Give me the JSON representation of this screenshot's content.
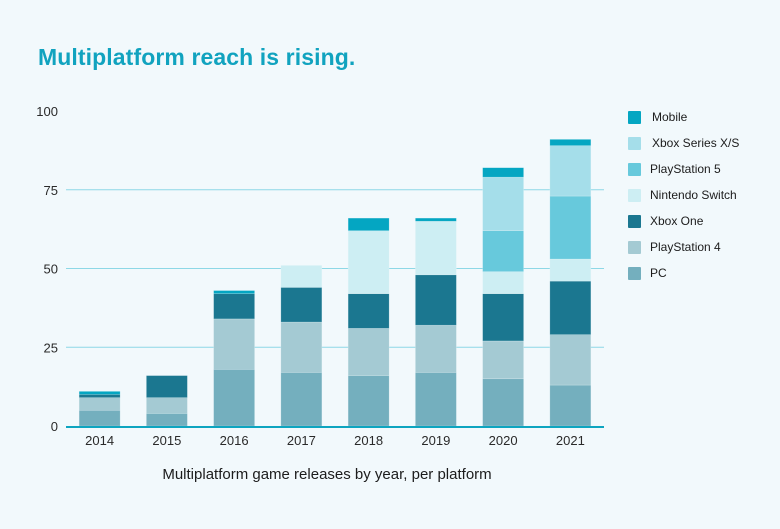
{
  "title": "Multiplatform reach is rising.",
  "chart_data": {
    "type": "bar",
    "stacked": true,
    "title": "Multiplatform reach is rising.",
    "xlabel": "Multiplatform game releases by year, per platform",
    "ylabel": "",
    "ylim": [
      0,
      100
    ],
    "yticks": [
      0,
      25,
      50,
      75,
      100
    ],
    "grid": true,
    "legend_position": "right",
    "categories": [
      "2014",
      "2015",
      "2016",
      "2017",
      "2018",
      "2019",
      "2020",
      "2021"
    ],
    "series": [
      {
        "name": "PC",
        "color": "#74AFBE",
        "values": [
          5,
          4,
          18,
          17,
          16,
          17,
          15,
          13
        ]
      },
      {
        "name": "PlayStation 4",
        "color": "#A4CAD3",
        "values": [
          4,
          5,
          16,
          16,
          15,
          15,
          12,
          16
        ]
      },
      {
        "name": "Xbox One",
        "color": "#1B7790",
        "values": [
          1,
          7,
          8,
          11,
          11,
          16,
          15,
          17
        ]
      },
      {
        "name": "Nintendo Switch",
        "color": "#CDEEF3",
        "values": [
          0,
          0,
          0,
          7,
          20,
          17,
          7,
          7
        ]
      },
      {
        "name": "PlayStation 5",
        "color": "#67C9DC",
        "values": [
          0,
          0,
          0,
          0,
          0,
          0,
          13,
          20
        ]
      },
      {
        "name": "Xbox Series X/S",
        "color": "#A5DEEA",
        "values": [
          0,
          0,
          0,
          0,
          0,
          0,
          17,
          16
        ]
      },
      {
        "name": "Mobile",
        "color": "#04A6C2",
        "values": [
          1,
          0,
          1,
          0,
          4,
          1,
          3,
          2
        ]
      }
    ]
  },
  "legend_order": [
    "Mobile",
    "Xbox Series X/S",
    "PlayStation 5",
    "Nintendo Switch",
    "Xbox One",
    "PlayStation 4",
    "PC"
  ],
  "colors": {
    "title": "#11A3BF",
    "grid": "#8ED8E6",
    "axis": "#0EA5C0",
    "background": "#F2F9FC"
  }
}
